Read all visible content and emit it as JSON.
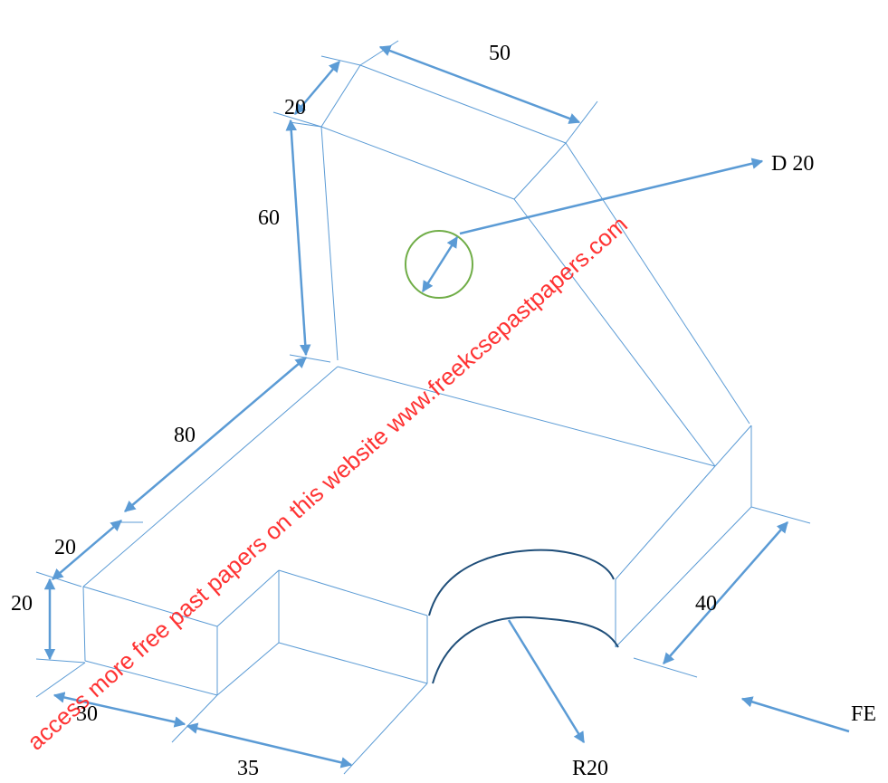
{
  "dimensions": {
    "top_width": "50",
    "top_depth": "20",
    "upright_height": "60",
    "hole_label": "D 20",
    "base_length": "80",
    "base_step_depth": "20",
    "base_height": "20",
    "front_width": "30",
    "notch_width": "35",
    "arc_radius": "R20",
    "side_depth": "40",
    "view_direction": "FE"
  },
  "watermark": "access more free past papers on this website www.freekcsepastpapers.com",
  "colors": {
    "lines": "#5b9bd5",
    "arc": "#1f4e79",
    "hole": "#70ad47",
    "watermark": "#ff3333"
  }
}
